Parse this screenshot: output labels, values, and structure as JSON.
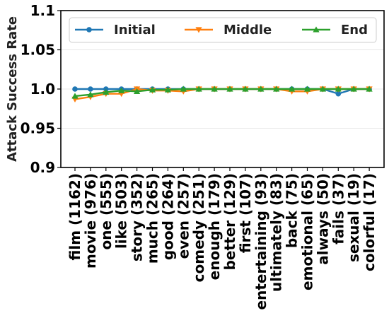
{
  "chart_data": {
    "type": "line",
    "title": "",
    "xlabel": "",
    "ylabel": "Attack Success Rate",
    "ylim": [
      0.9,
      1.1
    ],
    "yticks": [
      "0.9",
      "0.95",
      "1.0",
      "1.05",
      "1.1"
    ],
    "ytick_values": [
      0.9,
      0.95,
      1.0,
      1.05,
      1.1
    ],
    "grid": "horizontal",
    "legend_position": "top",
    "categories": [
      "film (1162)",
      "movie (976)",
      "one (555)",
      "like (503)",
      "story (352)",
      "much (265)",
      "good (264)",
      "even (257)",
      "comedy (251)",
      "enough (179)",
      "better (129)",
      "first (107)",
      "entertaining (93)",
      "ultimately (83)",
      "back (75)",
      "emotional (65)",
      "always (50)",
      "fails (37)",
      "sexual (19)",
      "colorful (17)"
    ],
    "series": [
      {
        "name": "Initial",
        "color": "#1f77b4",
        "marker": "circle",
        "values": [
          1.0,
          1.0,
          1.0,
          1.0,
          1.0,
          1.0,
          1.0,
          1.0,
          1.0,
          1.0,
          1.0,
          1.0,
          1.0,
          1.0,
          1.0,
          1.0,
          1.0,
          0.994,
          1.0,
          1.0
        ]
      },
      {
        "name": "Middle",
        "color": "#ff7f0e",
        "marker": "triangle-down",
        "values": [
          0.987,
          0.99,
          0.994,
          0.994,
          1.0,
          0.998,
          0.998,
          0.997,
          1.0,
          1.0,
          1.0,
          1.0,
          1.0,
          1.0,
          0.997,
          0.997,
          1.0,
          1.0,
          1.0,
          1.0
        ]
      },
      {
        "name": "End",
        "color": "#2ca02c",
        "marker": "triangle-up",
        "values": [
          0.991,
          0.993,
          0.996,
          0.998,
          0.997,
          0.999,
          0.999,
          1.0,
          1.0,
          1.0,
          1.0,
          1.0,
          1.0,
          1.0,
          1.0,
          1.0,
          1.0,
          1.0,
          1.0,
          1.0
        ]
      }
    ]
  }
}
